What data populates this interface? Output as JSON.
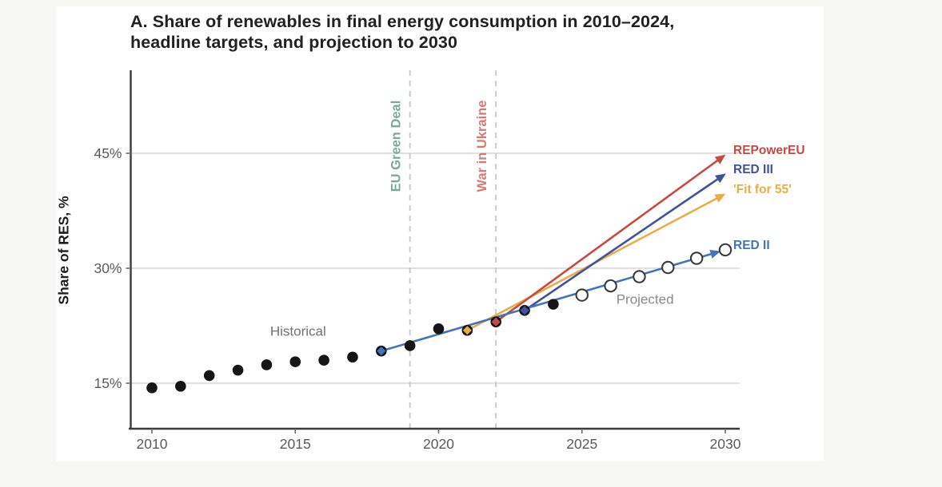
{
  "title": {
    "line1": "A. Share of renewables in final energy  consumption in 2010–2024,",
    "line2": "headline targets, and projection to 2030"
  },
  "colors": {
    "background": "#f7f7f6",
    "card": "#ffffff",
    "axis": "#3a3a3a",
    "grid": "#dcdcdc",
    "dashed_line": "#c6c6c6",
    "tick_text": "#5a5a5a",
    "historical_dot": "#151515",
    "annotation_gray": "#717171"
  },
  "chart_data": {
    "type": "line",
    "title": "A. Share of renewables in final energy consumption in 2010–2024, headline targets, and projection to 2030",
    "xlabel": "",
    "ylabel": "Share of RES, %",
    "xlim": [
      2009.25,
      2030.5
    ],
    "ylim": [
      9,
      56
    ],
    "grid": "horizontal",
    "x_ticks": [
      {
        "value": 2010,
        "label": "2010"
      },
      {
        "value": 2015,
        "label": "2015"
      },
      {
        "value": 2020,
        "label": "2020"
      },
      {
        "value": 2025,
        "label": "2025"
      },
      {
        "value": 2030,
        "label": "2030"
      }
    ],
    "y_ticks": [
      {
        "value": 15,
        "label": "15%"
      },
      {
        "value": 30,
        "label": "30%"
      },
      {
        "value": 45,
        "label": "45%"
      }
    ],
    "series": [
      {
        "name": "Historical",
        "style": "filled-dots",
        "color": "#151515",
        "x": [
          2010,
          2011,
          2012,
          2013,
          2014,
          2015,
          2016,
          2017,
          2018,
          2019,
          2020,
          2021,
          2022,
          2023,
          2024
        ],
        "values": [
          14.4,
          14.6,
          16.0,
          16.7,
          17.4,
          17.8,
          18.0,
          18.4,
          19.2,
          19.9,
          22.1,
          21.9,
          23.0,
          24.5,
          25.3
        ]
      },
      {
        "name": "Projected",
        "style": "open-dots",
        "color": "#3a3a3a",
        "x": [
          2025,
          2026,
          2027,
          2028,
          2029,
          2030
        ],
        "values": [
          26.5,
          27.7,
          28.9,
          30.1,
          31.3,
          32.4
        ]
      }
    ],
    "targets": [
      {
        "name": "'Fit for 55'",
        "color": "#ecac44",
        "start": {
          "year": 2021,
          "value": 21.9
        },
        "end": {
          "year": 2030,
          "value": 39.7
        }
      },
      {
        "name": "REPowerEU",
        "color": "#c74a3f",
        "start": {
          "year": 2022,
          "value": 23.0
        },
        "end": {
          "year": 2030,
          "value": 44.8
        }
      },
      {
        "name": "RED III",
        "color": "#40519e",
        "start": {
          "year": 2023,
          "value": 24.5
        },
        "end": {
          "year": 2030,
          "value": 42.3
        }
      },
      {
        "name": "RED II",
        "color": "#4374bb",
        "start": {
          "year": 2018,
          "value": 19.2
        },
        "end": {
          "year": 2030,
          "value": 32.4
        }
      }
    ],
    "events": [
      {
        "label": "EU Green Deal",
        "year": 2019,
        "color": "#7aa99a"
      },
      {
        "label": "War in Ukraine",
        "year": 2022,
        "color": "#d87a70"
      }
    ],
    "annotations": [
      {
        "text": "Historical",
        "year": 2015.1,
        "value": 21.8,
        "color": "#717171"
      },
      {
        "text": "Projected",
        "year": 2027.2,
        "value": 26.0,
        "color": "#8a8a8a"
      }
    ]
  }
}
